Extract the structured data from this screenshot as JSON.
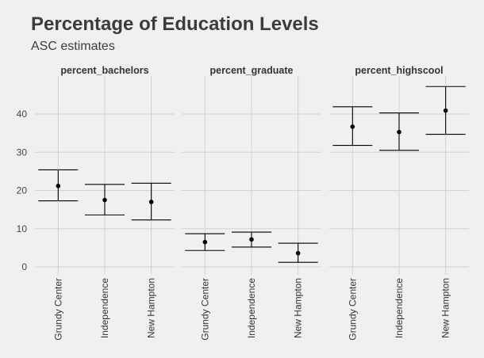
{
  "colors": {
    "background": "#f0f0f0",
    "grid": "#d2d2d2",
    "marks": "#000000"
  },
  "chart_data": {
    "type": "errorbar",
    "title": "Percentage of Education Levels",
    "subtitle": "ASC estimates",
    "ylim": [
      0,
      48
    ],
    "yticks": [
      0,
      10,
      20,
      30,
      40
    ],
    "ytick_labels": [
      "0",
      "10",
      "20",
      "30",
      "40"
    ],
    "grid": true,
    "facets": [
      {
        "name": "percent_bachelors",
        "categories": [
          "Grundy Center",
          "Independence",
          "New Hampton"
        ],
        "estimate": [
          21.2,
          17.5,
          17.0
        ],
        "lower": [
          17.3,
          13.6,
          12.3
        ],
        "upper": [
          25.4,
          21.6,
          21.9
        ]
      },
      {
        "name": "percent_graduate",
        "categories": [
          "Grundy Center",
          "Independence",
          "New Hampton"
        ],
        "estimate": [
          6.5,
          7.2,
          3.6
        ],
        "lower": [
          4.3,
          5.2,
          1.2
        ],
        "upper": [
          8.7,
          9.1,
          6.2
        ]
      },
      {
        "name": "percent_highscool",
        "categories": [
          "Grundy Center",
          "Independence",
          "New Hampton"
        ],
        "estimate": [
          36.7,
          35.3,
          40.9
        ],
        "lower": [
          31.8,
          30.5,
          34.7
        ],
        "upper": [
          41.9,
          40.3,
          47.2
        ]
      }
    ]
  }
}
